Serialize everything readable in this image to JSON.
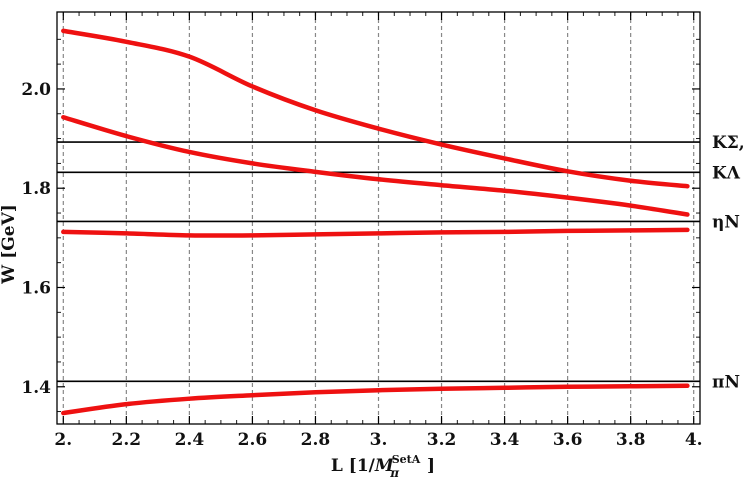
{
  "chart_data": {
    "type": "line",
    "xlabel": "L [1/M",
    "xlabel_sub": "π",
    "xlabel_sup": "SetA",
    "xlabel_end": "]",
    "ylabel": "W [GeV]",
    "xlim": [
      1.98,
      4.02
    ],
    "ylim": [
      1.325,
      2.155
    ],
    "x_ticks": [
      {
        "value": 2.0,
        "label": "2."
      },
      {
        "value": 2.2,
        "label": "2.2"
      },
      {
        "value": 2.4,
        "label": "2.4"
      },
      {
        "value": 2.6,
        "label": "2.6"
      },
      {
        "value": 2.8,
        "label": "2.8"
      },
      {
        "value": 3.0,
        "label": "3."
      },
      {
        "value": 3.2,
        "label": "3.2"
      },
      {
        "value": 3.4,
        "label": "3.4"
      },
      {
        "value": 3.6,
        "label": "3.6"
      },
      {
        "value": 3.8,
        "label": "3.8"
      },
      {
        "value": 4.0,
        "label": "4."
      }
    ],
    "y_ticks": [
      {
        "value": 1.4,
        "label": "1.4"
      },
      {
        "value": 1.6,
        "label": "1.6"
      },
      {
        "value": 1.8,
        "label": "1.8"
      },
      {
        "value": 2.0,
        "label": "2.0"
      }
    ],
    "grid": "vertical dashed",
    "thresholds": [
      {
        "value": 1.893,
        "label": "KΣ,"
      },
      {
        "value": 1.832,
        "label": "KΛ"
      },
      {
        "value": 1.733,
        "label": "ηN"
      },
      {
        "value": 1.411,
        "label": "πN"
      }
    ],
    "series": [
      {
        "x": [
          2.0,
          2.2,
          2.4,
          2.6,
          2.8,
          3.0,
          3.2,
          3.4,
          3.6,
          3.8,
          3.98
        ],
        "values": [
          2.117,
          2.095,
          2.065,
          2.005,
          1.957,
          1.92,
          1.888,
          1.86,
          1.834,
          1.815,
          1.804
        ]
      },
      {
        "x": [
          2.0,
          2.2,
          2.4,
          2.6,
          2.8,
          3.0,
          3.2,
          3.4,
          3.6,
          3.8,
          3.98
        ],
        "values": [
          1.943,
          1.905,
          1.873,
          1.85,
          1.833,
          1.818,
          1.806,
          1.795,
          1.781,
          1.765,
          1.747
        ]
      },
      {
        "x": [
          2.0,
          2.2,
          2.4,
          2.6,
          2.8,
          3.0,
          3.2,
          3.4,
          3.6,
          3.8,
          3.98
        ],
        "values": [
          1.712,
          1.709,
          1.705,
          1.705,
          1.707,
          1.709,
          1.711,
          1.712,
          1.714,
          1.715,
          1.716
        ]
      },
      {
        "x": [
          2.0,
          2.2,
          2.4,
          2.6,
          2.8,
          3.0,
          3.2,
          3.4,
          3.6,
          3.8,
          3.98
        ],
        "values": [
          1.347,
          1.365,
          1.376,
          1.383,
          1.389,
          1.393,
          1.396,
          1.398,
          1.4,
          1.401,
          1.402
        ]
      }
    ],
    "colors": {
      "series": "#ee1111",
      "threshold": "#000000",
      "grid": "#888888",
      "frame": "#000000"
    }
  }
}
